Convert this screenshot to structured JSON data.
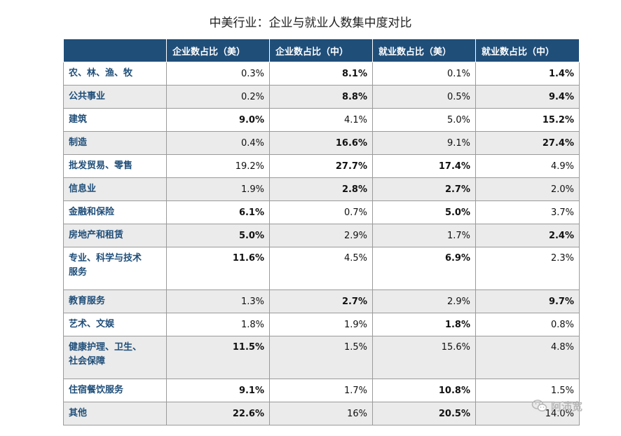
{
  "title": "中美行业：企业与就业人数集中度对比",
  "headers": [
    "",
    "企业数占比（美）",
    "企业数占比（中）",
    "就业数占比（美）",
    "就业数占比（中）"
  ],
  "rows": [
    {
      "category": "农、林、渔、牧",
      "values": [
        "0.3%",
        "8.1%",
        "0.1%",
        "1.4%"
      ],
      "bold": [
        false,
        true,
        false,
        true
      ]
    },
    {
      "category": "公共事业",
      "values": [
        "0.2%",
        "8.8%",
        "0.5%",
        "9.4%"
      ],
      "bold": [
        false,
        true,
        false,
        true
      ]
    },
    {
      "category": "建筑",
      "values": [
        "9.0%",
        "4.1%",
        "5.0%",
        "15.2%"
      ],
      "bold": [
        true,
        false,
        false,
        true
      ]
    },
    {
      "category": "制造",
      "values": [
        "0.4%",
        "16.6%",
        "9.1%",
        "27.4%"
      ],
      "bold": [
        false,
        true,
        false,
        true
      ]
    },
    {
      "category": "批发贸易、零售",
      "values": [
        "19.2%",
        "27.7%",
        "17.4%",
        "4.9%"
      ],
      "bold": [
        false,
        true,
        true,
        false
      ]
    },
    {
      "category": "信息业",
      "values": [
        "1.9%",
        "2.8%",
        "2.7%",
        "2.0%"
      ],
      "bold": [
        false,
        true,
        true,
        false
      ]
    },
    {
      "category": "金融和保险",
      "values": [
        "6.1%",
        "0.7%",
        "5.0%",
        "3.7%"
      ],
      "bold": [
        true,
        false,
        true,
        false
      ]
    },
    {
      "category": "房地产和租赁",
      "values": [
        "5.0%",
        "2.9%",
        "1.7%",
        "2.4%"
      ],
      "bold": [
        true,
        false,
        false,
        true
      ]
    },
    {
      "category_lines": [
        "专业、科学与技术",
        "服务"
      ],
      "values": [
        "11.6%",
        "4.5%",
        "6.9%",
        "2.3%"
      ],
      "bold": [
        true,
        false,
        true,
        false
      ]
    },
    {
      "category": "教育服务",
      "values": [
        "1.3%",
        "2.7%",
        "2.9%",
        "9.7%"
      ],
      "bold": [
        false,
        true,
        false,
        true
      ]
    },
    {
      "category": "艺术、文娱",
      "values": [
        "1.8%",
        "1.9%",
        "1.8%",
        "0.8%"
      ],
      "bold": [
        false,
        false,
        true,
        false
      ]
    },
    {
      "category_lines": [
        "健康护理、卫生、",
        "社会保障"
      ],
      "values": [
        "11.5%",
        "1.5%",
        "15.6%",
        "4.8%"
      ],
      "bold": [
        true,
        false,
        false,
        false
      ]
    },
    {
      "category": "住宿餐饮服务",
      "values": [
        "9.1%",
        "1.7%",
        "10.8%",
        "1.5%"
      ],
      "bold": [
        true,
        false,
        true,
        false
      ]
    },
    {
      "category": "其他",
      "values": [
        "22.6%",
        "16%",
        "20.5%",
        "14.0%"
      ],
      "bold": [
        true,
        false,
        true,
        false
      ]
    }
  ],
  "watermark": {
    "text": "阿沛宽",
    "icon": "wechat-icon"
  }
}
